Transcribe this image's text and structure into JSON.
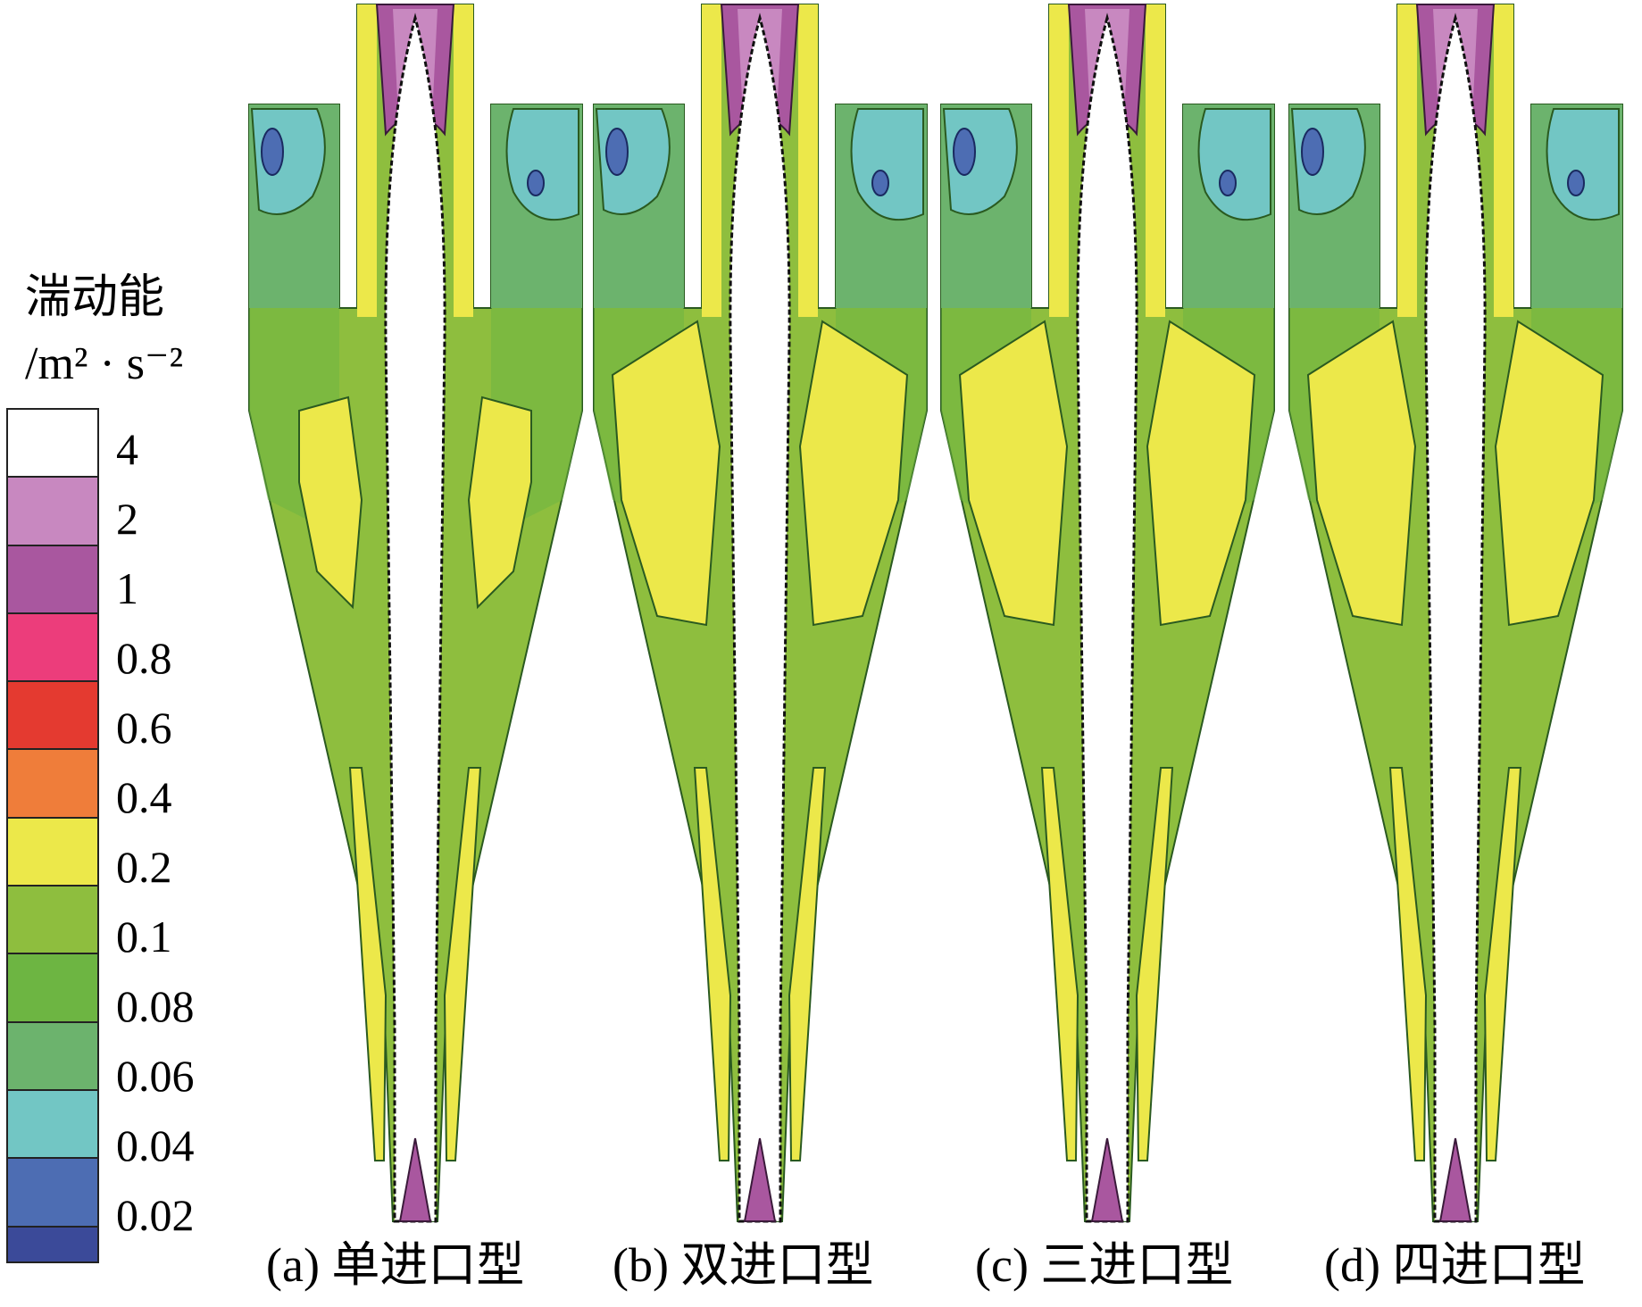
{
  "legend": {
    "title_line1": "湍动能",
    "title_line2": "/m² · s⁻²",
    "levels": [
      "4",
      "2",
      "1",
      "0.8",
      "0.6",
      "0.4",
      "0.2",
      "0.1",
      "0.08",
      "0.06",
      "0.04",
      "0.02"
    ],
    "colors": [
      "#ffffff",
      "#c888c0",
      "#a9579f",
      "#ec3d7b",
      "#e43a30",
      "#ef7d3a",
      "#ece84a",
      "#8ebe3e",
      "#6db542",
      "#6cb36d",
      "#72c6c4",
      "#4d6db3",
      "#3b4a99"
    ]
  },
  "panels": [
    {
      "caption": "(a) 单进口型"
    },
    {
      "caption": "(b) 双进口型"
    },
    {
      "caption": "(c) 三进口型"
    },
    {
      "caption": "(d) 四进口型"
    }
  ]
}
